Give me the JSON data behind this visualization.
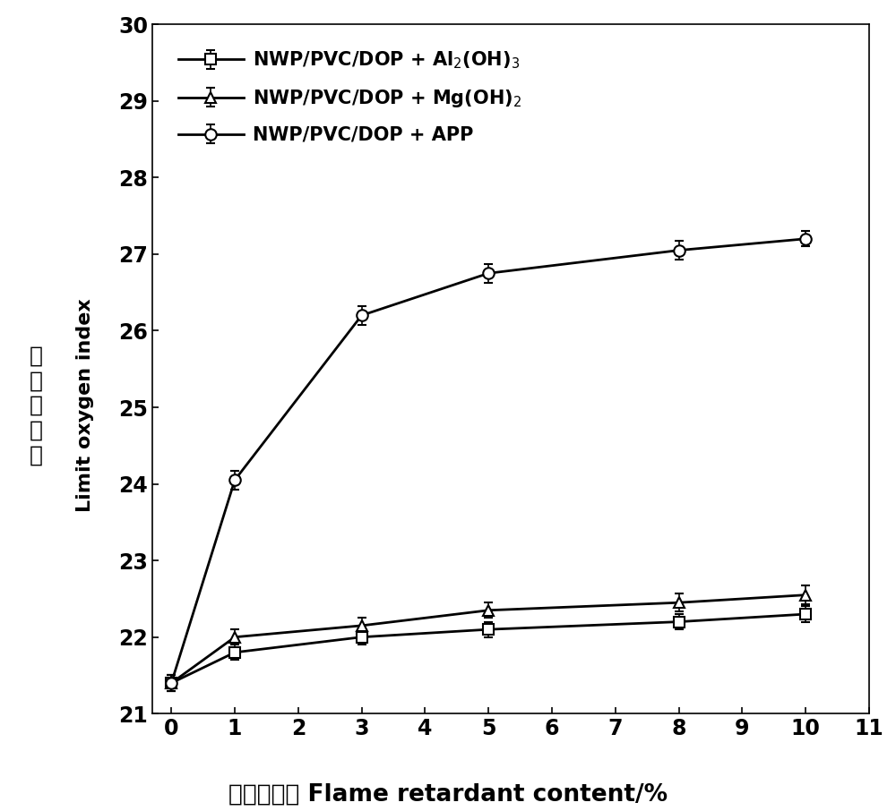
{
  "x": [
    0,
    1,
    3,
    5,
    8,
    10
  ],
  "al_y": [
    21.4,
    21.8,
    22.0,
    22.1,
    22.2,
    22.3
  ],
  "mg_y": [
    21.4,
    22.0,
    22.15,
    22.35,
    22.45,
    22.55
  ],
  "app_y": [
    21.4,
    24.05,
    26.2,
    26.75,
    27.05,
    27.2
  ],
  "al_yerr": [
    0.1,
    0.1,
    0.1,
    0.1,
    0.1,
    0.1
  ],
  "mg_yerr": [
    0.1,
    0.1,
    0.1,
    0.1,
    0.12,
    0.12
  ],
  "app_yerr": [
    0.1,
    0.12,
    0.12,
    0.12,
    0.12,
    0.1
  ],
  "xlabel_cn": "阻燃剂用量",
  "xlabel_en": " Flame retardant content/%",
  "ylabel_cn": "极限氧指数",
  "ylabel_en": " Limit oxygen index",
  "legend_al": "NWP/PVC/DOP + Al$_2$(OH)$_3$",
  "legend_mg": "NWP/PVC/DOP + Mg(OH)$_2$",
  "legend_app": "NWP/PVC/DOP + APP",
  "xlim": [
    -0.3,
    11
  ],
  "ylim": [
    21,
    30
  ],
  "yticks": [
    21,
    22,
    23,
    24,
    25,
    26,
    27,
    28,
    29,
    30
  ],
  "xticks": [
    0,
    1,
    2,
    3,
    4,
    5,
    6,
    7,
    8,
    9,
    10,
    11
  ],
  "line_color": "#000000",
  "figsize": [
    10.0,
    9.06
  ],
  "dpi": 100
}
